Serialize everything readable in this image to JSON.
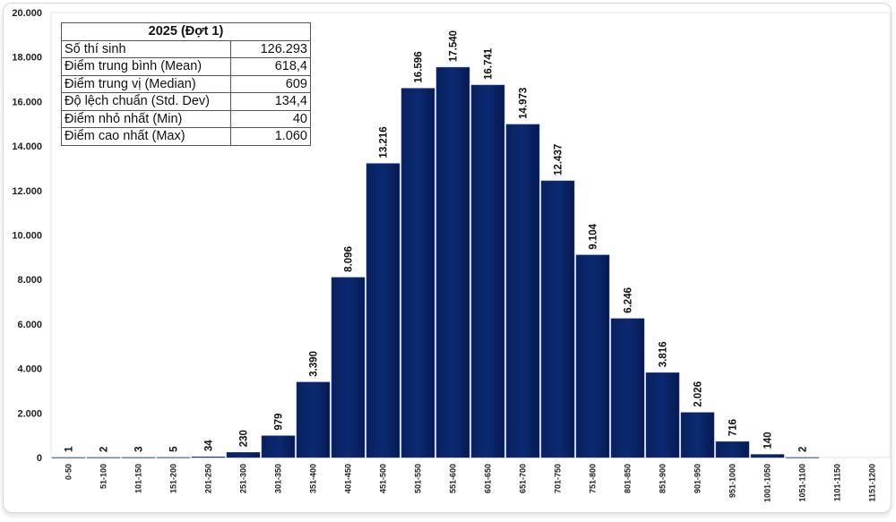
{
  "stats_table": {
    "title": "2025 (Đợt 1)",
    "rows": [
      {
        "label": "Số thí sinh",
        "value": "126.293"
      },
      {
        "label": "Điểm trung bình (Mean)",
        "value": "618,4"
      },
      {
        "label": "Điểm trung vị (Median)",
        "value": "609"
      },
      {
        "label": "Độ lệch chuẩn (Std. Dev)",
        "value": "134,4"
      },
      {
        "label": "Điểm nhỏ nhất (Min)",
        "value": "40"
      },
      {
        "label": "Điểm cao nhất (Max)",
        "value": "1.060"
      }
    ]
  },
  "chart_data": {
    "type": "bar",
    "title": "",
    "xlabel": "",
    "ylabel": "",
    "ylim": [
      0,
      20000
    ],
    "yticks": [
      "0",
      "2.000",
      "4.000",
      "6.000",
      "8.000",
      "10.000",
      "12.000",
      "14.000",
      "16.000",
      "18.000",
      "20.000"
    ],
    "grid": false,
    "bar_color": "#0b2466",
    "categories": [
      "0-50",
      "51-100",
      "101-150",
      "151-200",
      "201-250",
      "251-300",
      "301-350",
      "351-400",
      "401-450",
      "451-500",
      "501-550",
      "551-600",
      "601-650",
      "651-700",
      "701-750",
      "751-800",
      "801-850",
      "851-900",
      "901-950",
      "951-1000",
      "1001-1050",
      "1051-1100",
      "1101-1150",
      "1151-1200"
    ],
    "values": [
      1,
      2,
      3,
      5,
      34,
      230,
      979,
      3390,
      8096,
      13216,
      16596,
      17540,
      16741,
      14973,
      12437,
      9104,
      6246,
      3816,
      2026,
      716,
      140,
      2,
      null,
      null
    ],
    "data_labels": [
      "1",
      "2",
      "3",
      "5",
      "34",
      "230",
      "979",
      "3.390",
      "8.096",
      "13.216",
      "16.596",
      "17.540",
      "16.741",
      "14.973",
      "12.437",
      "9.104",
      "6.246",
      "3.816",
      "2.026",
      "716",
      "140",
      "2",
      "",
      ""
    ]
  }
}
